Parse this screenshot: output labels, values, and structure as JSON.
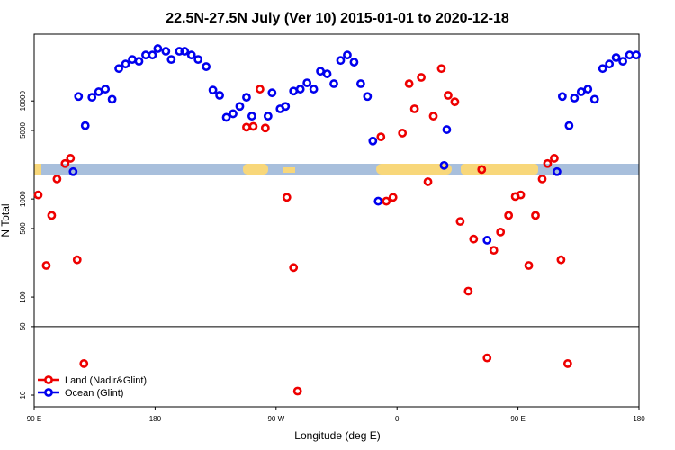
{
  "chart_data": {
    "type": "scatter",
    "title": "22.5N-27.5N July (Ver 10)   2015-01-01 to 2020-12-18",
    "x_label": "Longitude (deg E)",
    "y_label": "N Total",
    "log_y": true,
    "legend": "bottom-left",
    "hline": 50,
    "xlim": [
      90,
      540
    ],
    "ylim": [
      7.6,
      48000
    ],
    "xticks": [
      {
        "value": 90,
        "label": "90 E"
      },
      {
        "value": 180,
        "label": "180"
      },
      {
        "value": 270,
        "label": "90 W"
      },
      {
        "value": 360,
        "label": "0"
      },
      {
        "value": 450,
        "label": "90 E"
      },
      {
        "value": 540,
        "label": "180"
      }
    ],
    "yticks": [
      10,
      50,
      100,
      500,
      1000,
      5000,
      10000
    ],
    "series": [
      {
        "name": "Land (Nadir&Glint)",
        "color": "#ee0000",
        "x": [
          93,
          99,
          103,
          107,
          113,
          117,
          122,
          127,
          248,
          253,
          258,
          262,
          278,
          283,
          286,
          348,
          352,
          357,
          364,
          369,
          373,
          378,
          383,
          387,
          393,
          398,
          403,
          407,
          413,
          417,
          423,
          427,
          432,
          437,
          443,
          448,
          452,
          458,
          463,
          468,
          472,
          477,
          482,
          487
        ],
        "values": [
          1100,
          210,
          680,
          1600,
          2300,
          2600,
          240,
          21,
          5400,
          5500,
          13200,
          5300,
          1040,
          200,
          11,
          4300,
          950,
          1040,
          4700,
          15000,
          8300,
          17400,
          1500,
          7000,
          21400,
          11400,
          9800,
          590,
          115,
          390,
          2000,
          24,
          300,
          460,
          680,
          1060,
          1100,
          210,
          680,
          1600,
          2300,
          2600,
          240,
          21
        ]
      },
      {
        "name": "Ocean (Glint)",
        "color": "#0000ee",
        "x": [
          119,
          123,
          128,
          133,
          138,
          143,
          148,
          153,
          158,
          163,
          168,
          173,
          178,
          182,
          188,
          192,
          198,
          202,
          207,
          212,
          218,
          223,
          228,
          233,
          238,
          243,
          248,
          252,
          264,
          267,
          273,
          277,
          283,
          288,
          293,
          298,
          303,
          308,
          313,
          318,
          323,
          328,
          333,
          338,
          342,
          346,
          395,
          397,
          427,
          479,
          483,
          488,
          492,
          497,
          502,
          507,
          513,
          518,
          523,
          528,
          533,
          538
        ],
        "values": [
          1900,
          11100,
          5600,
          10900,
          12400,
          13200,
          10400,
          21400,
          23800,
          26500,
          25400,
          29400,
          29400,
          34200,
          32100,
          26500,
          32100,
          32100,
          29400,
          26500,
          22400,
          12900,
          11400,
          6800,
          7400,
          8800,
          10900,
          7000,
          7000,
          12100,
          8300,
          8800,
          12600,
          13200,
          15300,
          13200,
          20100,
          18900,
          15000,
          25900,
          29400,
          24900,
          15000,
          11100,
          3900,
          950,
          2200,
          5100,
          380,
          1900,
          11100,
          5600,
          10700,
          12400,
          13200,
          10400,
          21400,
          23800,
          27700,
          25400,
          29400,
          29400
        ]
      }
    ]
  }
}
